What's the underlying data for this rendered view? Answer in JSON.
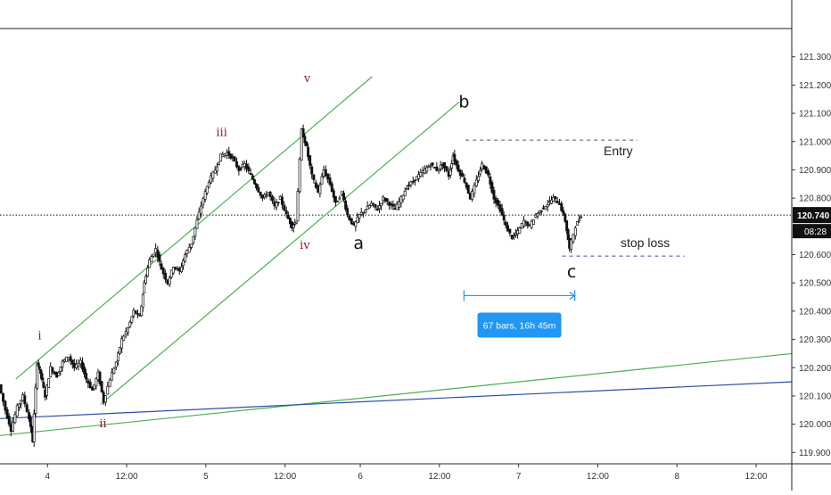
{
  "chart_data": {
    "type": "candlestick",
    "title": "",
    "xlabel": "",
    "ylabel": "",
    "grid": false,
    "legend": "none",
    "x_range": [
      0,
      100
    ],
    "ylim": [
      119.86,
      121.4
    ],
    "x_ticks": [
      {
        "label": "4",
        "x": 6
      },
      {
        "label": "12:00",
        "x": 16
      },
      {
        "label": "5",
        "x": 26
      },
      {
        "label": "12:00",
        "x": 36
      },
      {
        "label": "6",
        "x": 45.5
      },
      {
        "label": "12:00",
        "x": 55.5
      },
      {
        "label": "7",
        "x": 65.5
      },
      {
        "label": "12:00",
        "x": 75.5
      },
      {
        "label": "8",
        "x": 85.5
      },
      {
        "label": "12:00",
        "x": 95.5
      }
    ],
    "y_ticks": [
      "121.300",
      "121.200",
      "121.100",
      "121.000",
      "120.900",
      "120.800",
      "120.600",
      "120.500",
      "120.400",
      "120.300",
      "120.200",
      "120.100",
      "120.000",
      "119.900"
    ],
    "price_path": [
      [
        0,
        120.14
      ],
      [
        0.8,
        120.05
      ],
      [
        1.5,
        119.98
      ],
      [
        2.3,
        120.06
      ],
      [
        3.0,
        120.1
      ],
      [
        3.8,
        120.02
      ],
      [
        4.2,
        119.94
      ],
      [
        4.8,
        120.22
      ],
      [
        5.2,
        120.18
      ],
      [
        5.8,
        120.1
      ],
      [
        6.5,
        120.2
      ],
      [
        7.3,
        120.17
      ],
      [
        8.0,
        120.22
      ],
      [
        8.8,
        120.24
      ],
      [
        9.5,
        120.2
      ],
      [
        10.3,
        120.22
      ],
      [
        11.0,
        120.16
      ],
      [
        11.8,
        120.12
      ],
      [
        12.5,
        120.18
      ],
      [
        13.2,
        120.08
      ],
      [
        14.0,
        120.16
      ],
      [
        14.8,
        120.22
      ],
      [
        15.5,
        120.3
      ],
      [
        16.3,
        120.34
      ],
      [
        17.0,
        120.4
      ],
      [
        17.8,
        120.38
      ],
      [
        18.3,
        120.5
      ],
      [
        19.0,
        120.58
      ],
      [
        19.8,
        120.62
      ],
      [
        20.5,
        120.55
      ],
      [
        21.3,
        120.5
      ],
      [
        22.0,
        120.56
      ],
      [
        22.8,
        120.54
      ],
      [
        23.5,
        120.6
      ],
      [
        24.3,
        120.64
      ],
      [
        25.0,
        120.72
      ],
      [
        25.8,
        120.8
      ],
      [
        26.5,
        120.86
      ],
      [
        27.3,
        120.9
      ],
      [
        28.0,
        120.95
      ],
      [
        28.8,
        120.96
      ],
      [
        29.5,
        120.94
      ],
      [
        30.3,
        120.9
      ],
      [
        31.0,
        120.92
      ],
      [
        31.8,
        120.88
      ],
      [
        32.5,
        120.84
      ],
      [
        33.3,
        120.8
      ],
      [
        34.0,
        120.82
      ],
      [
        34.8,
        120.77
      ],
      [
        35.5,
        120.8
      ],
      [
        36.3,
        120.74
      ],
      [
        37.0,
        120.7
      ],
      [
        37.5,
        120.72
      ],
      [
        38.2,
        121.04
      ],
      [
        38.8,
        120.98
      ],
      [
        39.5,
        120.88
      ],
      [
        40.3,
        120.82
      ],
      [
        41.0,
        120.9
      ],
      [
        41.8,
        120.85
      ],
      [
        42.5,
        120.78
      ],
      [
        43.3,
        120.82
      ],
      [
        44.0,
        120.74
      ],
      [
        44.8,
        120.7
      ],
      [
        45.5,
        120.74
      ],
      [
        46.3,
        120.76
      ],
      [
        47.0,
        120.78
      ],
      [
        47.8,
        120.76
      ],
      [
        48.5,
        120.8
      ],
      [
        49.3,
        120.78
      ],
      [
        50.0,
        120.76
      ],
      [
        50.8,
        120.8
      ],
      [
        51.5,
        120.84
      ],
      [
        52.3,
        120.86
      ],
      [
        53.0,
        120.88
      ],
      [
        53.8,
        120.9
      ],
      [
        54.5,
        120.92
      ],
      [
        55.3,
        120.9
      ],
      [
        56.0,
        120.92
      ],
      [
        56.8,
        120.88
      ],
      [
        57.3,
        120.95
      ],
      [
        58.0,
        120.9
      ],
      [
        58.8,
        120.86
      ],
      [
        59.5,
        120.8
      ],
      [
        60.3,
        120.86
      ],
      [
        61.0,
        120.92
      ],
      [
        61.8,
        120.88
      ],
      [
        62.5,
        120.8
      ],
      [
        63.3,
        120.76
      ],
      [
        64.0,
        120.7
      ],
      [
        64.8,
        120.66
      ],
      [
        65.5,
        120.68
      ],
      [
        66.3,
        120.72
      ],
      [
        67.0,
        120.7
      ],
      [
        67.8,
        120.74
      ],
      [
        68.5,
        120.76
      ],
      [
        69.3,
        120.78
      ],
      [
        70.0,
        120.8
      ],
      [
        70.8,
        120.78
      ],
      [
        71.5,
        120.72
      ],
      [
        72.0,
        120.62
      ],
      [
        72.8,
        120.7
      ],
      [
        73.5,
        120.74
      ]
    ],
    "channels": [
      {
        "color": "#4caf50",
        "points": [
          [
            2.0,
            120.16
          ],
          [
            47.0,
            121.23
          ]
        ]
      },
      {
        "color": "#4caf50",
        "points": [
          [
            12.7,
            120.07
          ],
          [
            58.0,
            121.14
          ]
        ]
      },
      {
        "color": "#4caf50",
        "points": [
          [
            0,
            119.96
          ],
          [
            100,
            120.25
          ]
        ]
      },
      {
        "color": "#2d4fa8",
        "points": [
          [
            0,
            120.02
          ],
          [
            100,
            120.15
          ]
        ]
      }
    ],
    "wave_labels": [
      {
        "text": "i",
        "x": 5.0,
        "y": 120.3,
        "style": "red"
      },
      {
        "text": "ii",
        "x": 13.0,
        "y": 119.99,
        "style": "red"
      },
      {
        "text": "iii",
        "x": 28.0,
        "y": 121.02,
        "style": "red"
      },
      {
        "text": "iv",
        "x": 38.5,
        "y": 120.62,
        "style": "red"
      },
      {
        "text": "v",
        "x": 38.8,
        "y": 121.21,
        "style": "red"
      },
      {
        "text": "a",
        "x": 45.3,
        "y": 120.62,
        "style": "black"
      },
      {
        "text": "b",
        "x": 58.6,
        "y": 121.12,
        "style": "black"
      },
      {
        "text": "c",
        "x": 72.2,
        "y": 120.52,
        "style": "black"
      }
    ],
    "levels": [
      {
        "label": "Entry",
        "value": 121.005,
        "x_start": 58.8,
        "x_end": 80.5,
        "color": "#555555"
      },
      {
        "label": "stop loss",
        "value": 120.595,
        "x_start": 71.0,
        "x_end": 86.5,
        "color": "#3949ab"
      }
    ],
    "range_measure": {
      "label": "67 bars, 16h 45m",
      "x_start": 58.6,
      "x_end": 72.6,
      "value": 120.455
    },
    "current_price": {
      "value": 120.74,
      "label": "120.740",
      "countdown": "08:28",
      "reference_line": 120.74
    }
  }
}
